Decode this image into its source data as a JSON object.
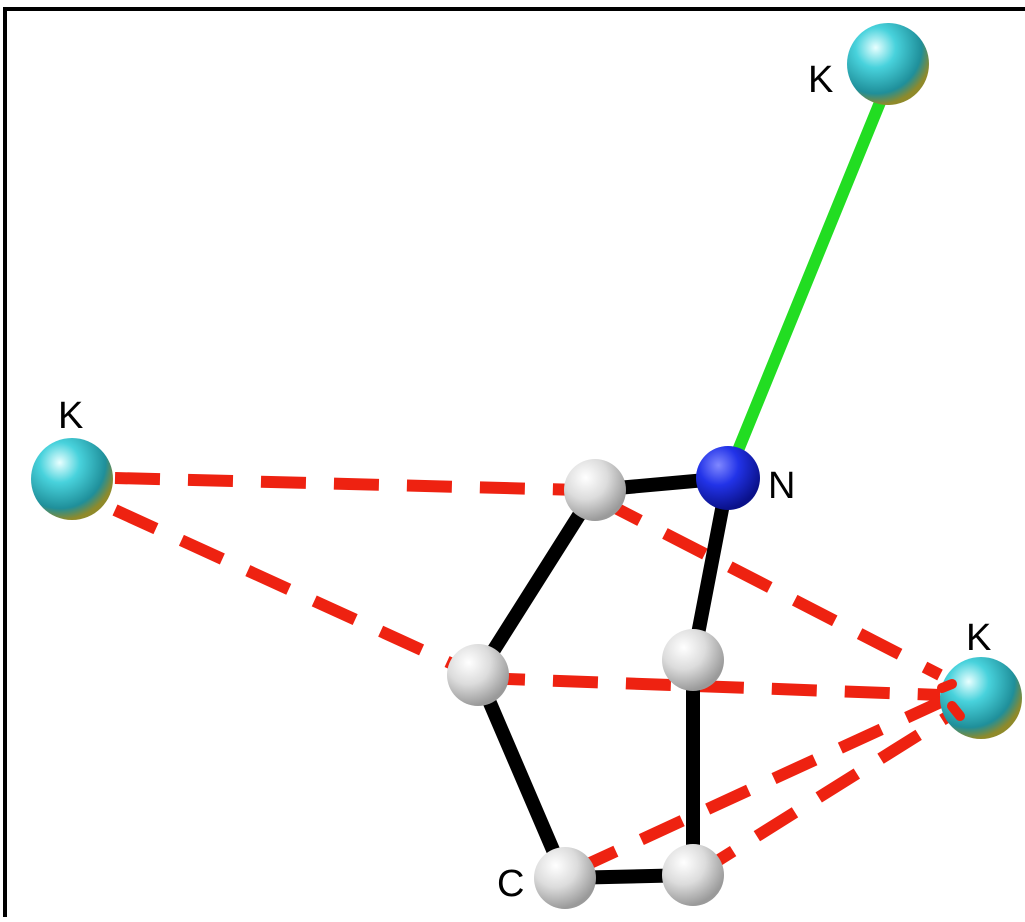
{
  "atoms": {
    "k_top": {
      "label": "K",
      "element": "K",
      "color": "#2fb8c4"
    },
    "k_left": {
      "label": "K",
      "element": "K",
      "color": "#2fb8c4"
    },
    "k_right": {
      "label": "K",
      "element": "K",
      "color": "#2fb8c4"
    },
    "nitrogen": {
      "label": "N",
      "element": "N",
      "color": "#1f2ee0"
    },
    "c_top": {
      "label": "",
      "element": "C",
      "color": "#d9d9d9"
    },
    "c_mid_left": {
      "label": "",
      "element": "C",
      "color": "#d9d9d9"
    },
    "c_mid_right": {
      "label": "",
      "element": "C",
      "color": "#d9d9d9"
    },
    "c_bottom_left": {
      "label": "C",
      "element": "C",
      "color": "#d9d9d9"
    },
    "c_bottom_right": {
      "label": "",
      "element": "C",
      "color": "#d9d9d9"
    }
  },
  "bond_colors": {
    "covalent": "#000000",
    "k_n_bond": "#22dd22",
    "k_c_contact": "#ee2211"
  }
}
